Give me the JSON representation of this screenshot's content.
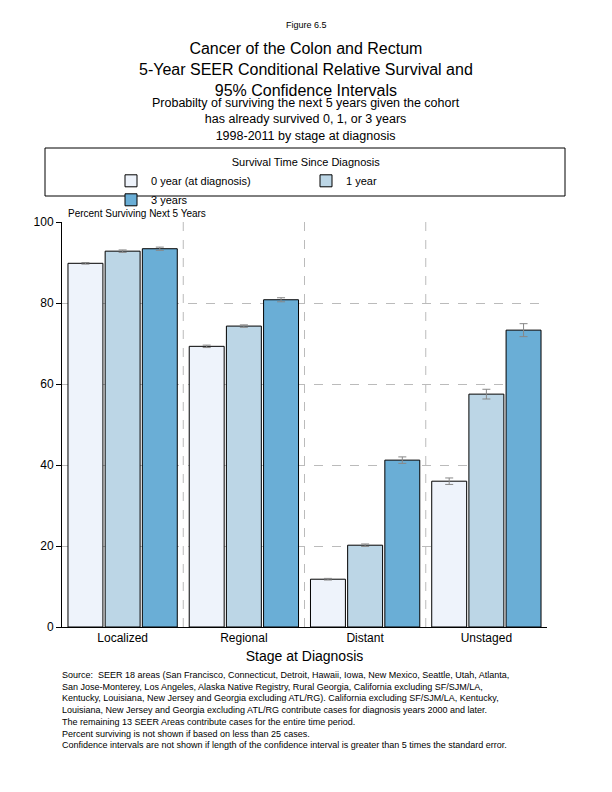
{
  "chart_data": {
    "type": "bar",
    "figure_label": "Figure 6.5",
    "title": [
      "Cancer of the Colon and Rectum",
      "5-Year SEER Conditional Relative Survival and",
      "95% Confidence Intervals"
    ],
    "subtitle": [
      "Probabilty of surviving the next 5 years given the cohort",
      "has already survived 0, 1, or 3 years",
      "1998-2011 by stage at diagnosis"
    ],
    "legend_title": "Survival Time Since Diagnosis",
    "y_label": "Percent Surviving Next 5 Years",
    "x_label": "Stage at Diagnosis",
    "categories": [
      "Localized",
      "Regional",
      "Distant",
      "Unstaged"
    ],
    "series": [
      {
        "name": "0 year (at diagnosis)",
        "color": "#eef3fb",
        "values": [
          89.8,
          69.3,
          11.8,
          36.0
        ],
        "error": [
          0.2,
          0.3,
          0.2,
          0.8
        ]
      },
      {
        "name": "1 year",
        "color": "#bcd6e6",
        "values": [
          92.8,
          74.3,
          20.2,
          57.5
        ],
        "error": [
          0.3,
          0.3,
          0.3,
          1.2
        ]
      },
      {
        "name": "3 years",
        "color": "#6aaed6",
        "values": [
          93.4,
          80.8,
          41.2,
          73.3
        ],
        "error": [
          0.4,
          0.5,
          0.8,
          1.6
        ]
      }
    ],
    "ylim": [
      0,
      100
    ],
    "yticks": [
      0,
      20,
      40,
      60,
      80,
      100
    ],
    "grid": true,
    "legend": "top",
    "notes": [
      "Source:  SEER 18 areas (San Francisco, Connecticut, Detroit, Hawaii, Iowa, New Mexico, Seattle, Utah, Atlanta,",
      "San Jose-Monterey, Los Angeles, Alaska Native Registry, Rural Georgia, California excluding SF/SJM/LA,",
      "Kentucky, Louisiana, New Jersey and Georgia excluding ATL/RG). California excluding SF/SJM/LA, Kentucky,",
      "Louisiana, New Jersey and Georgia excluding ATL/RG contribute cases for diagnosis years 2000 and later.",
      "The remaining 13 SEER Areas contribute cases for the entire time period.",
      "Percent surviving is not shown if based on less than 25 cases.",
      "Confidence intervals are not shown if length of the confidence interval is greater than 5 times the standard error."
    ]
  }
}
